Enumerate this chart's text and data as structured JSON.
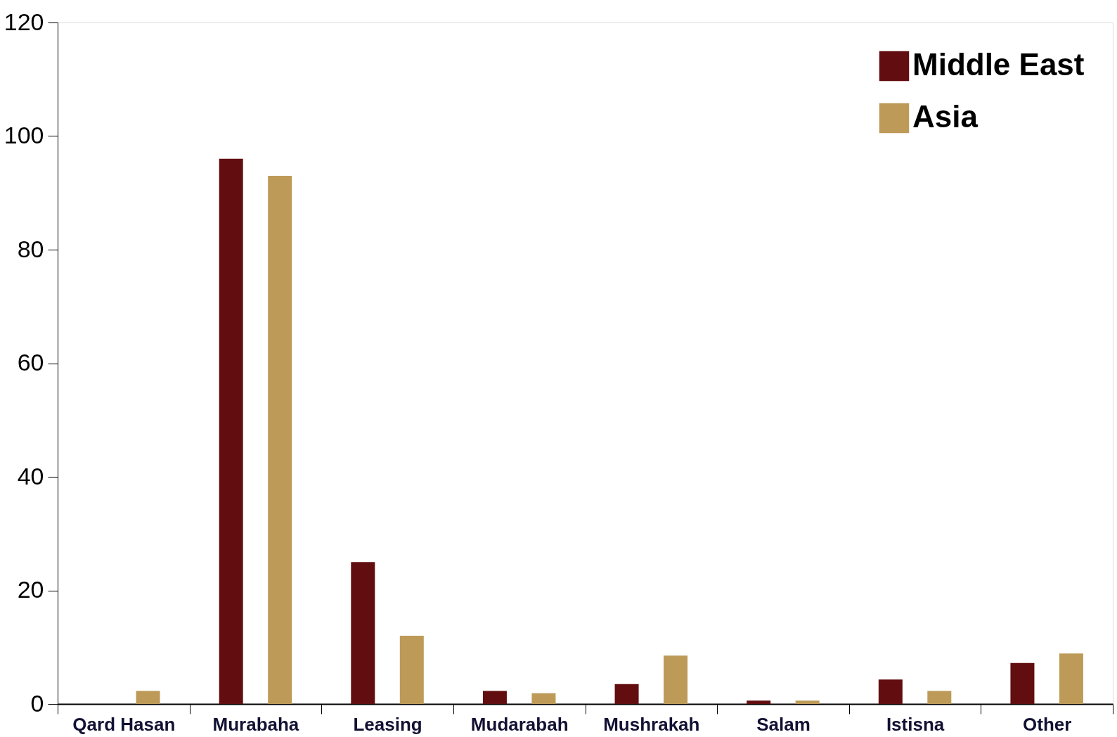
{
  "chart_data": {
    "type": "bar",
    "categories": [
      "Qard Hasan",
      "Murabaha",
      "Leasing",
      "Mudarabah",
      "Mushrakah",
      "Salam",
      "Istisna",
      "Other"
    ],
    "series": [
      {
        "name": "Middle East",
        "color": "#620d10",
        "values": [
          null,
          96,
          25,
          2.3,
          3.5,
          0.6,
          4.3,
          7.2
        ]
      },
      {
        "name": "Asia",
        "color": "#bd9a58",
        "values": [
          2.3,
          93,
          12,
          1.9,
          8.5,
          0.6,
          2.3,
          8.9
        ]
      }
    ],
    "ylim": [
      0,
      120
    ],
    "yticks": [
      0,
      20,
      40,
      60,
      80,
      100,
      120
    ],
    "grid": false,
    "legend": "top right"
  }
}
